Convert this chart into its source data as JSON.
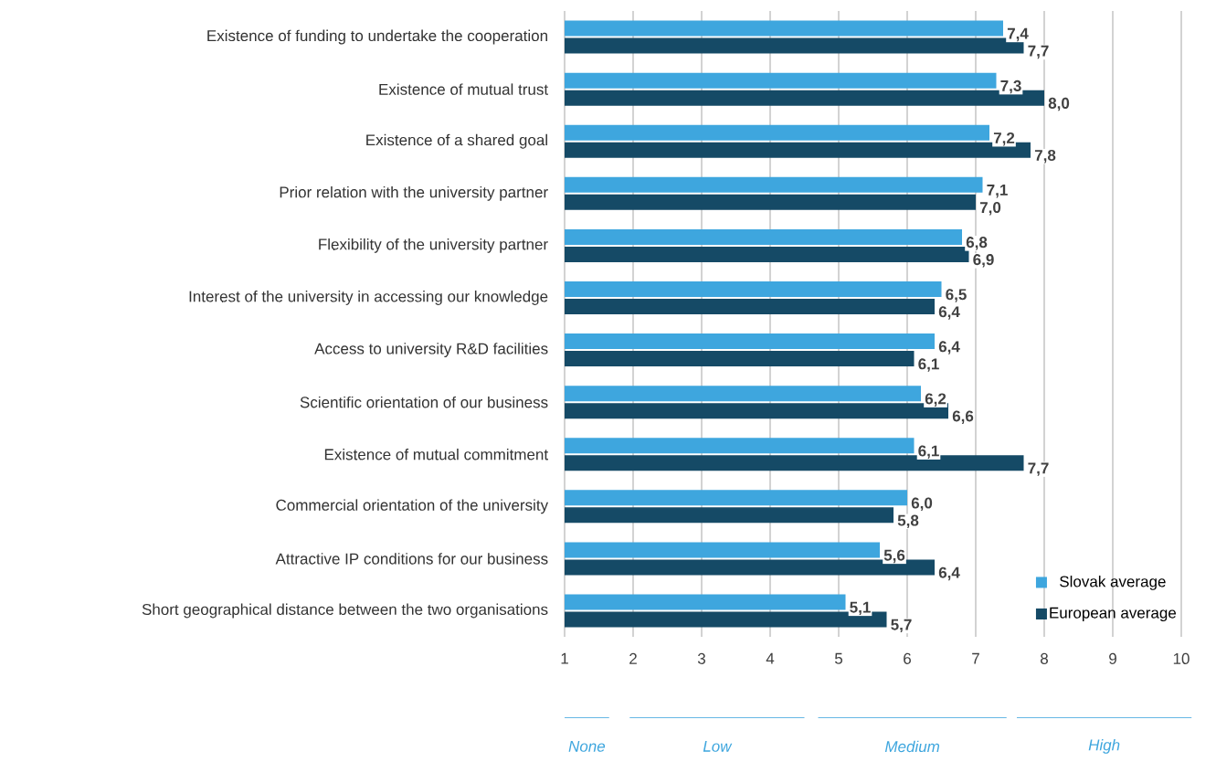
{
  "chart_data": {
    "type": "bar",
    "orientation": "horizontal",
    "categories": [
      "Existence of funding to undertake the cooperation",
      "Existence of mutual trust",
      "Existence of a shared goal",
      "Prior relation with the university partner",
      "Flexibility of the university partner",
      "Interest of the university in accessing our knowledge",
      "Access to university R&D facilities",
      "Scientific orientation of our business",
      "Existence of mutual commitment",
      "Commercial orientation of the university",
      "Attractive IP conditions for our business",
      "Short geographical distance between the two organisations"
    ],
    "series": [
      {
        "name": "Slovak average",
        "color": "#3ea6de",
        "values": [
          7.4,
          7.3,
          7.2,
          7.1,
          6.8,
          6.5,
          6.4,
          6.2,
          6.1,
          6.0,
          5.6,
          5.1
        ],
        "value_labels": [
          "7,4",
          "7,3",
          "7,2",
          "7,1",
          "6,8",
          "6,5",
          "6,4",
          "6,2",
          "6,1",
          "6,0",
          "5,6",
          "5,1"
        ]
      },
      {
        "name": "European average",
        "color": "#154a66",
        "values": [
          7.7,
          8.0,
          7.8,
          7.0,
          6.9,
          6.4,
          6.1,
          6.6,
          7.7,
          5.8,
          6.4,
          5.7
        ],
        "value_labels": [
          "7,7",
          "8,0",
          "7,8",
          "7,0",
          "6,9",
          "6,4",
          "6,1",
          "6,6",
          "7,7",
          "5,8",
          "6,4",
          "5,7"
        ]
      }
    ],
    "xlim": [
      1,
      10
    ],
    "xticks": [
      1,
      2,
      3,
      4,
      5,
      6,
      7,
      8,
      9,
      10
    ],
    "grid": "x",
    "legend": "bottom right",
    "annotations": [
      "None",
      "Low",
      "Medium",
      "High"
    ]
  }
}
